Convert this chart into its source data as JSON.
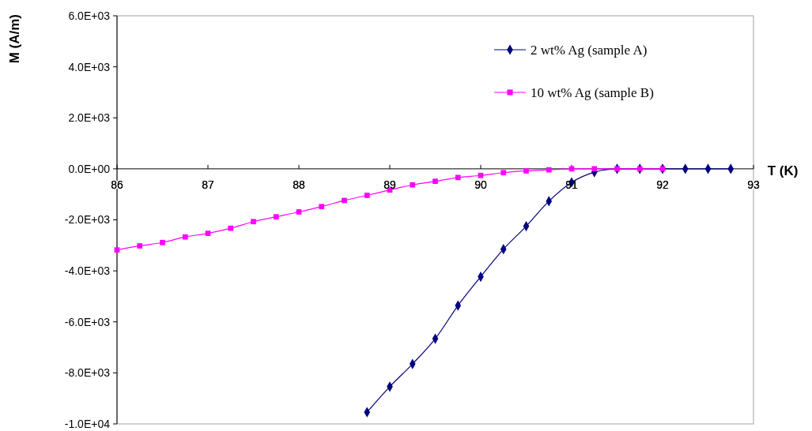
{
  "chart_data": {
    "type": "line",
    "xlabel": "T (K)",
    "ylabel": "M (A/m)",
    "xlim": [
      86,
      93
    ],
    "xticks": [
      86,
      87,
      88,
      89,
      90,
      91,
      92,
      93
    ],
    "ylim": [
      -10000,
      6000
    ],
    "yticks": [
      {
        "value": -10000,
        "label": "-1.0E+04"
      },
      {
        "value": -8000,
        "label": "-8.0E+03"
      },
      {
        "value": -6000,
        "label": "-6.0E+03"
      },
      {
        "value": -4000,
        "label": "-4.0E+03"
      },
      {
        "value": -2000,
        "label": "-2.0E+03"
      },
      {
        "value": 0,
        "label": "0.0E+00"
      },
      {
        "value": 2000,
        "label": "2.0E+03"
      },
      {
        "value": 4000,
        "label": "4.0E+03"
      },
      {
        "value": 6000,
        "label": "6.0E+03"
      }
    ],
    "grid": false,
    "legend": "top right",
    "series": [
      {
        "name": "2 wt% Ag (sample A)",
        "color": "#000080",
        "marker": "diamond",
        "x": [
          88.75,
          89,
          89.25,
          89.5,
          89.75,
          90,
          90.25,
          90.5,
          90.75,
          91,
          91.25,
          91.5,
          91.75,
          92,
          92.25,
          92.5,
          92.75
        ],
        "values": [
          -9540,
          -8540,
          -7650,
          -6660,
          -5360,
          -4230,
          -3150,
          -2250,
          -1270,
          -530,
          -130,
          0,
          0,
          0,
          0,
          0,
          0
        ]
      },
      {
        "name": "10 wt% Ag (sample B)",
        "color": "#ff00ff",
        "marker": "square",
        "x": [
          86,
          86.25,
          86.5,
          86.75,
          87,
          87.25,
          87.5,
          87.75,
          88,
          88.25,
          88.5,
          88.75,
          89,
          89.25,
          89.5,
          89.75,
          90,
          90.25,
          90.5,
          90.75,
          91,
          91.25,
          91.5,
          91.75,
          92
        ],
        "values": [
          -3180,
          -3020,
          -2890,
          -2670,
          -2530,
          -2330,
          -2070,
          -1880,
          -1690,
          -1480,
          -1240,
          -1040,
          -830,
          -630,
          -490,
          -340,
          -260,
          -150,
          -80,
          -40,
          0,
          0,
          0,
          0,
          0
        ]
      }
    ]
  }
}
